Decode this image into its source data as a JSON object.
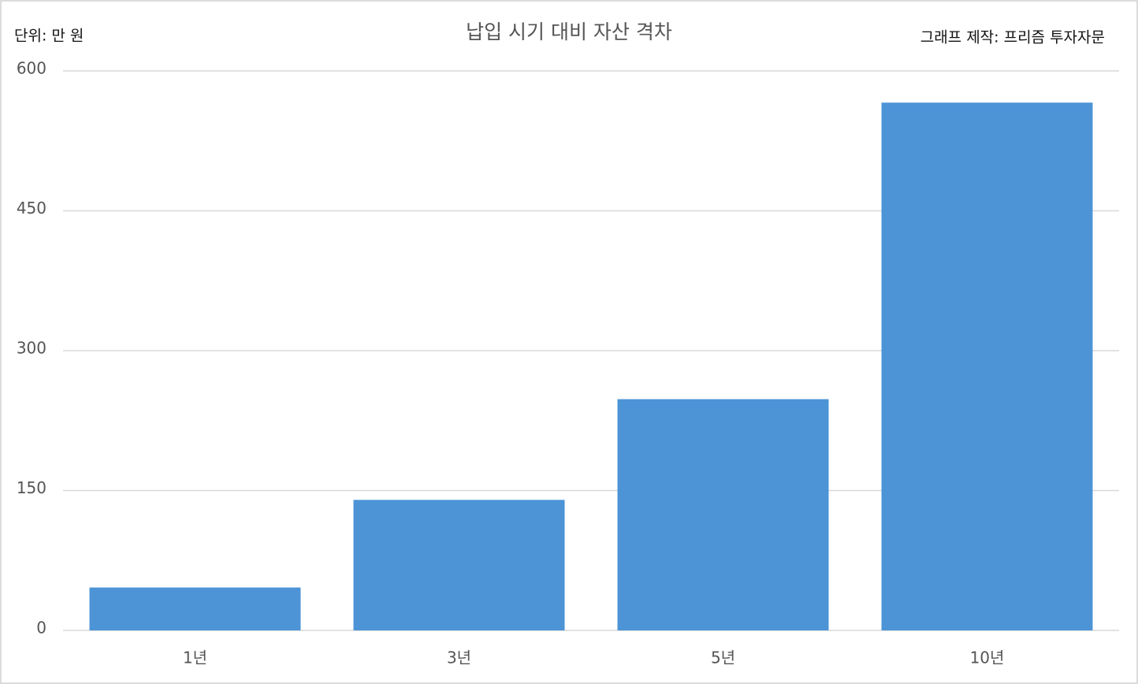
{
  "chart_data": {
    "type": "bar",
    "title": "납입 시기 대비 자산 격차",
    "unit_label": "단위: 만 원",
    "credit": "그래프 제작: 프리즘 투자자문",
    "categories": [
      "1년",
      "3년",
      "5년",
      "10년"
    ],
    "values": [
      46,
      140,
      248,
      566
    ],
    "color": "#4c94d6",
    "ylim": [
      0,
      600
    ],
    "yticks": [
      0,
      150,
      300,
      450,
      600
    ],
    "grid": true
  }
}
